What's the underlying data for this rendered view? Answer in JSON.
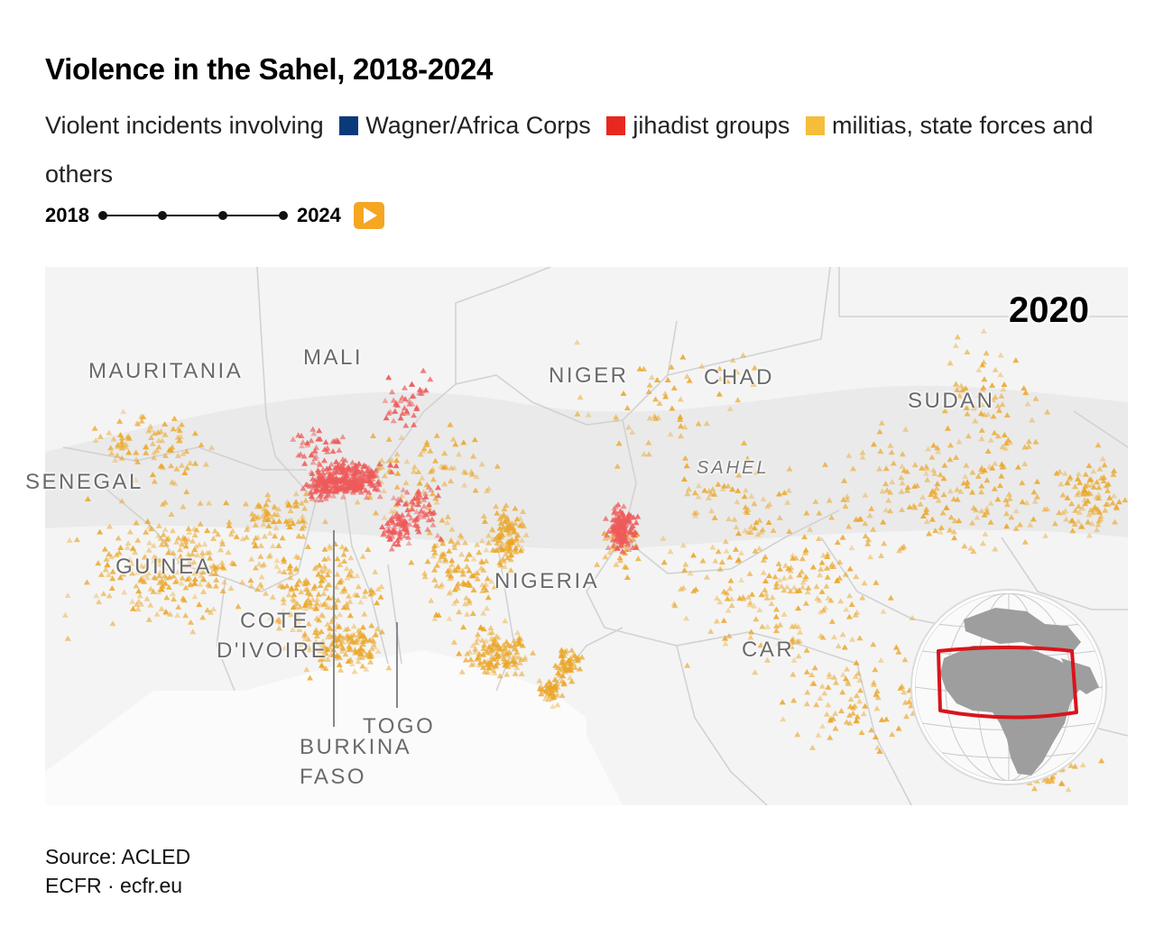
{
  "header": {
    "title": "Violence in the Sahel, 2018-2024",
    "subtitle_prefix": "Violent incidents involving",
    "legend": [
      {
        "label": "Wagner/Africa Corps",
        "color": "#0b3a7a"
      },
      {
        "label": "jihadist groups",
        "color": "#e8281e"
      },
      {
        "label": "militias, state forces and others",
        "color": "#f5bd3a"
      }
    ]
  },
  "timeline": {
    "start_label": "2018",
    "end_label": "2024",
    "stops": 4,
    "play_icon": "play-icon",
    "play_color": "#f5a623"
  },
  "map": {
    "current_year": "2020",
    "country_labels": {
      "mauritania": "MAURITANIA",
      "mali": "MALI",
      "niger": "NIGER",
      "chad": "CHAD",
      "sudan": "SUDAN",
      "senegal": "SENEGAL",
      "sahel": "SAHEL",
      "guinea": "GUINEA",
      "nigeria": "NIGERIA",
      "cote_line1": "COTE",
      "cote_line2": "D'IVOIRE",
      "car": "CAR",
      "togo": "TOGO",
      "burkina_line1": "BURKINA",
      "burkina_line2": "FASO"
    },
    "colors": {
      "land": "#f4f4f4",
      "sahel_band": "#e9e9e9",
      "border": "#d2d2d2",
      "jihadist": "#ee5a5a",
      "others": "#eba628",
      "locator_frame": "#d9141b"
    }
  },
  "footer": {
    "source": "Source: ACLED",
    "credit": "ECFR · ecfr.eu"
  }
}
